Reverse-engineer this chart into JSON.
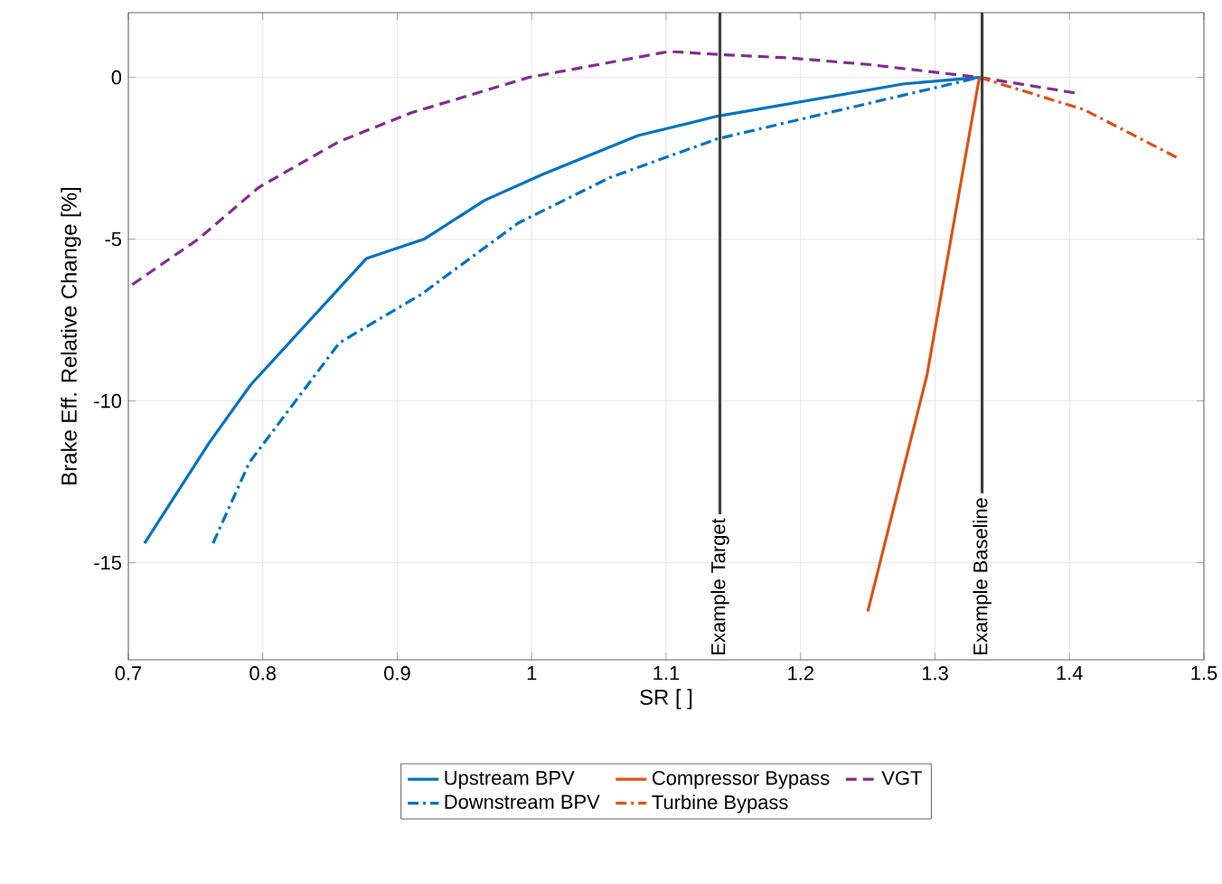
{
  "chart_data": {
    "type": "line",
    "xlabel": "SR [ ]",
    "ylabel": "Brake Eff. Relative Change [%]",
    "xlim": [
      0.7,
      1.5
    ],
    "ylim": [
      -18,
      2
    ],
    "xticks": [
      0.7,
      0.8,
      0.9,
      1,
      1.1,
      1.2,
      1.3,
      1.4,
      1.5
    ],
    "yticks": [
      -15,
      -10,
      -5,
      0
    ],
    "grid": true,
    "legend": "bottom",
    "marker": "none",
    "series": [
      {
        "name": "Upstream BPV",
        "color": "#0072bd",
        "line_style": "solid",
        "x": [
          0.712,
          0.76,
          0.791,
          0.877,
          0.92,
          0.965,
          1.008,
          1.079,
          1.138,
          1.277,
          1.333
        ],
        "values": [
          -14.4,
          -11.3,
          -9.5,
          -5.6,
          -5.0,
          -3.8,
          -3.0,
          -1.8,
          -1.2,
          -0.2,
          0
        ]
      },
      {
        "name": "Compressor Bypass",
        "color": "#d95319",
        "line_style": "solid",
        "x": [
          1.25,
          1.294,
          1.333
        ],
        "values": [
          -16.5,
          -9.2,
          0
        ]
      },
      {
        "name": "VGT",
        "color": "#7e2f8e",
        "line_style": "dashed",
        "x": [
          0.703,
          0.752,
          0.797,
          0.856,
          0.91,
          0.998,
          1.102,
          1.142,
          1.192,
          1.25,
          1.333,
          1.407
        ],
        "values": [
          -6.4,
          -5.0,
          -3.4,
          -2.0,
          -1.1,
          0,
          0.8,
          0.7,
          0.6,
          0.4,
          0,
          -0.5
        ]
      },
      {
        "name": "Downstream BPV",
        "color": "#0072bd",
        "line_style": "dashdot",
        "x": [
          0.763,
          0.79,
          0.857,
          0.918,
          0.99,
          1.058,
          1.138,
          1.333
        ],
        "values": [
          -14.4,
          -11.9,
          -8.2,
          -6.7,
          -4.5,
          -3.1,
          -1.9,
          0
        ]
      },
      {
        "name": "Turbine Bypass",
        "color": "#d95319",
        "line_style": "dashdot",
        "x": [
          1.333,
          1.411,
          1.481
        ],
        "values": [
          0,
          -1.0,
          -2.5
        ]
      }
    ],
    "ref_lines": [
      {
        "axis": "x",
        "value": 1.14,
        "label": "Example Target",
        "color": "#404040"
      },
      {
        "axis": "x",
        "value": 1.335,
        "label": "Example Baseline",
        "color": "#404040"
      }
    ]
  }
}
